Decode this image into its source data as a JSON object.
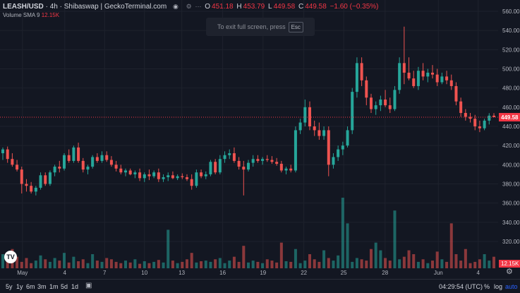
{
  "legend": {
    "symbol": "LEASH/USD",
    "separator1": "·",
    "interval": "4h",
    "separator2": "·",
    "exchange": "Shibaswap",
    "separator3": "|",
    "source": "GeckoTerminal.com",
    "o_label": "O",
    "o_value": "451.18",
    "h_label": "H",
    "h_value": "453.79",
    "l_label": "L",
    "l_value": "449.58",
    "c_label": "C",
    "c_value": "449.58",
    "change": "−1.60 (−0.35%)"
  },
  "volume_legend": {
    "label": "Volume",
    "indicator": "SMA 9",
    "value": "12.15K"
  },
  "fullscreen_hint": {
    "text": "To exit full screen, press",
    "key": "Esc"
  },
  "price_axis": {
    "ticks": [
      "560.00",
      "540.00",
      "520.00",
      "500.00",
      "480.00",
      "460.00",
      "440.00",
      "420.00",
      "400.00",
      "380.00",
      "360.00",
      "340.00",
      "320.00"
    ],
    "last_price_label": "449.58",
    "volume_label": "12.15K"
  },
  "time_axis": {
    "ticks": [
      "May",
      "4",
      "7",
      "10",
      "13",
      "16",
      "19",
      "22",
      "25",
      "28",
      "Jun",
      "4"
    ]
  },
  "bottom_bar": {
    "timeframes": [
      "5y",
      "1y",
      "6m",
      "3m",
      "1m",
      "5d",
      "1d"
    ],
    "clock": "04:29:54 (UTC)",
    "percent": "%",
    "log": "log",
    "auto": "auto"
  },
  "colors": {
    "up": "#26a69a",
    "down": "#ef5350",
    "background": "#131722",
    "grid": "#1e222d",
    "last_price": "#f23645"
  },
  "chart_data": {
    "type": "candlestick",
    "title": "LEASH/USD · 4h · Shibaswap",
    "ylim": [
      310,
      565
    ],
    "y_ticks": [
      320,
      340,
      360,
      380,
      400,
      420,
      440,
      460,
      480,
      500,
      520,
      540,
      560
    ],
    "x_ticks": [
      "May",
      "4",
      "7",
      "10",
      "13",
      "16",
      "19",
      "22",
      "25",
      "28",
      "Jun",
      "4"
    ],
    "last_price": 449.58,
    "candles": [
      {
        "o": 412,
        "h": 418,
        "l": 405,
        "c": 416
      },
      {
        "o": 416,
        "h": 419,
        "l": 402,
        "c": 406
      },
      {
        "o": 406,
        "h": 412,
        "l": 398,
        "c": 400
      },
      {
        "o": 400,
        "h": 405,
        "l": 393,
        "c": 395
      },
      {
        "o": 395,
        "h": 398,
        "l": 370,
        "c": 380
      },
      {
        "o": 380,
        "h": 385,
        "l": 372,
        "c": 378
      },
      {
        "o": 378,
        "h": 382,
        "l": 370,
        "c": 372
      },
      {
        "o": 372,
        "h": 378,
        "l": 368,
        "c": 376
      },
      {
        "o": 376,
        "h": 392,
        "l": 374,
        "c": 389
      },
      {
        "o": 389,
        "h": 392,
        "l": 378,
        "c": 380
      },
      {
        "o": 380,
        "h": 394,
        "l": 378,
        "c": 392
      },
      {
        "o": 392,
        "h": 400,
        "l": 388,
        "c": 398
      },
      {
        "o": 398,
        "h": 404,
        "l": 392,
        "c": 396
      },
      {
        "o": 396,
        "h": 412,
        "l": 394,
        "c": 410
      },
      {
        "o": 410,
        "h": 416,
        "l": 402,
        "c": 404
      },
      {
        "o": 404,
        "h": 420,
        "l": 402,
        "c": 418
      },
      {
        "o": 418,
        "h": 423,
        "l": 402,
        "c": 404
      },
      {
        "o": 404,
        "h": 407,
        "l": 392,
        "c": 395
      },
      {
        "o": 395,
        "h": 400,
        "l": 390,
        "c": 398
      },
      {
        "o": 398,
        "h": 410,
        "l": 396,
        "c": 408
      },
      {
        "o": 408,
        "h": 412,
        "l": 402,
        "c": 404
      },
      {
        "o": 404,
        "h": 414,
        "l": 402,
        "c": 410
      },
      {
        "o": 410,
        "h": 414,
        "l": 403,
        "c": 405
      },
      {
        "o": 405,
        "h": 409,
        "l": 398,
        "c": 400
      },
      {
        "o": 400,
        "h": 404,
        "l": 393,
        "c": 396
      },
      {
        "o": 396,
        "h": 400,
        "l": 390,
        "c": 392
      },
      {
        "o": 392,
        "h": 396,
        "l": 388,
        "c": 394
      },
      {
        "o": 394,
        "h": 396,
        "l": 389,
        "c": 390
      },
      {
        "o": 390,
        "h": 394,
        "l": 386,
        "c": 392
      },
      {
        "o": 392,
        "h": 396,
        "l": 383,
        "c": 386
      },
      {
        "o": 386,
        "h": 392,
        "l": 382,
        "c": 390
      },
      {
        "o": 390,
        "h": 395,
        "l": 384,
        "c": 388
      },
      {
        "o": 388,
        "h": 394,
        "l": 386,
        "c": 392
      },
      {
        "o": 392,
        "h": 396,
        "l": 382,
        "c": 385
      },
      {
        "o": 385,
        "h": 390,
        "l": 382,
        "c": 387
      },
      {
        "o": 387,
        "h": 392,
        "l": 383,
        "c": 389
      },
      {
        "o": 389,
        "h": 393,
        "l": 385,
        "c": 386
      },
      {
        "o": 386,
        "h": 390,
        "l": 384,
        "c": 388
      },
      {
        "o": 388,
        "h": 391,
        "l": 385,
        "c": 387
      },
      {
        "o": 387,
        "h": 390,
        "l": 383,
        "c": 385
      },
      {
        "o": 385,
        "h": 390,
        "l": 374,
        "c": 378
      },
      {
        "o": 378,
        "h": 395,
        "l": 376,
        "c": 392
      },
      {
        "o": 392,
        "h": 395,
        "l": 386,
        "c": 388
      },
      {
        "o": 388,
        "h": 393,
        "l": 385,
        "c": 390
      },
      {
        "o": 390,
        "h": 405,
        "l": 388,
        "c": 403
      },
      {
        "o": 403,
        "h": 406,
        "l": 390,
        "c": 392
      },
      {
        "o": 392,
        "h": 410,
        "l": 390,
        "c": 406
      },
      {
        "o": 406,
        "h": 414,
        "l": 402,
        "c": 410
      },
      {
        "o": 410,
        "h": 416,
        "l": 406,
        "c": 412
      },
      {
        "o": 412,
        "h": 418,
        "l": 402,
        "c": 404
      },
      {
        "o": 404,
        "h": 408,
        "l": 395,
        "c": 398
      },
      {
        "o": 398,
        "h": 404,
        "l": 368,
        "c": 395
      },
      {
        "o": 395,
        "h": 405,
        "l": 393,
        "c": 402
      },
      {
        "o": 402,
        "h": 410,
        "l": 398,
        "c": 406
      },
      {
        "o": 406,
        "h": 410,
        "l": 402,
        "c": 404
      },
      {
        "o": 404,
        "h": 408,
        "l": 400,
        "c": 406
      },
      {
        "o": 406,
        "h": 410,
        "l": 403,
        "c": 405
      },
      {
        "o": 405,
        "h": 409,
        "l": 401,
        "c": 403
      },
      {
        "o": 403,
        "h": 407,
        "l": 399,
        "c": 401
      },
      {
        "o": 401,
        "h": 404,
        "l": 392,
        "c": 394
      },
      {
        "o": 394,
        "h": 398,
        "l": 390,
        "c": 396
      },
      {
        "o": 396,
        "h": 400,
        "l": 392,
        "c": 394
      },
      {
        "o": 394,
        "h": 440,
        "l": 392,
        "c": 436
      },
      {
        "o": 436,
        "h": 448,
        "l": 432,
        "c": 444
      },
      {
        "o": 444,
        "h": 468,
        "l": 440,
        "c": 460
      },
      {
        "o": 460,
        "h": 466,
        "l": 436,
        "c": 440
      },
      {
        "o": 440,
        "h": 446,
        "l": 430,
        "c": 436
      },
      {
        "o": 436,
        "h": 444,
        "l": 426,
        "c": 430
      },
      {
        "o": 430,
        "h": 440,
        "l": 426,
        "c": 436
      },
      {
        "o": 436,
        "h": 440,
        "l": 388,
        "c": 400
      },
      {
        "o": 400,
        "h": 412,
        "l": 396,
        "c": 408
      },
      {
        "o": 408,
        "h": 420,
        "l": 404,
        "c": 416
      },
      {
        "o": 416,
        "h": 424,
        "l": 410,
        "c": 420
      },
      {
        "o": 420,
        "h": 440,
        "l": 418,
        "c": 436
      },
      {
        "o": 436,
        "h": 480,
        "l": 432,
        "c": 476
      },
      {
        "o": 476,
        "h": 512,
        "l": 470,
        "c": 506
      },
      {
        "o": 506,
        "h": 512,
        "l": 482,
        "c": 488
      },
      {
        "o": 488,
        "h": 492,
        "l": 462,
        "c": 470
      },
      {
        "o": 470,
        "h": 474,
        "l": 454,
        "c": 458
      },
      {
        "o": 458,
        "h": 466,
        "l": 452,
        "c": 462
      },
      {
        "o": 462,
        "h": 472,
        "l": 456,
        "c": 468
      },
      {
        "o": 468,
        "h": 478,
        "l": 460,
        "c": 462
      },
      {
        "o": 462,
        "h": 470,
        "l": 454,
        "c": 458
      },
      {
        "o": 458,
        "h": 482,
        "l": 456,
        "c": 478
      },
      {
        "o": 478,
        "h": 512,
        "l": 474,
        "c": 506
      },
      {
        "o": 506,
        "h": 544,
        "l": 484,
        "c": 496
      },
      {
        "o": 496,
        "h": 512,
        "l": 488,
        "c": 490
      },
      {
        "o": 490,
        "h": 498,
        "l": 480,
        "c": 482
      },
      {
        "o": 482,
        "h": 502,
        "l": 478,
        "c": 498
      },
      {
        "o": 498,
        "h": 506,
        "l": 488,
        "c": 492
      },
      {
        "o": 492,
        "h": 500,
        "l": 486,
        "c": 496
      },
      {
        "o": 496,
        "h": 504,
        "l": 490,
        "c": 494
      },
      {
        "o": 494,
        "h": 500,
        "l": 482,
        "c": 486
      },
      {
        "o": 486,
        "h": 496,
        "l": 484,
        "c": 492
      },
      {
        "o": 492,
        "h": 498,
        "l": 484,
        "c": 488
      },
      {
        "o": 488,
        "h": 494,
        "l": 478,
        "c": 482
      },
      {
        "o": 482,
        "h": 486,
        "l": 462,
        "c": 466
      },
      {
        "o": 466,
        "h": 470,
        "l": 450,
        "c": 454
      },
      {
        "o": 454,
        "h": 458,
        "l": 446,
        "c": 450
      },
      {
        "o": 450,
        "h": 454,
        "l": 444,
        "c": 448
      },
      {
        "o": 448,
        "h": 452,
        "l": 436,
        "c": 440
      },
      {
        "o": 440,
        "h": 446,
        "l": 434,
        "c": 438
      },
      {
        "o": 438,
        "h": 448,
        "l": 436,
        "c": 446
      },
      {
        "o": 446,
        "h": 453.79,
        "l": 442,
        "c": 451.18
      },
      {
        "o": 451.18,
        "h": 453.79,
        "l": 449.58,
        "c": 449.58
      }
    ],
    "volumes": [
      22,
      14,
      30,
      18,
      10,
      16,
      8,
      12,
      20,
      14,
      10,
      16,
      12,
      24,
      9,
      18,
      11,
      14,
      8,
      22,
      12,
      10,
      16,
      14,
      10,
      8,
      12,
      9,
      14,
      7,
      11,
      8,
      10,
      13,
      9,
      60,
      12,
      8,
      10,
      14,
      24,
      9,
      11,
      12,
      10,
      14,
      16,
      8,
      12,
      18,
      10,
      35,
      9,
      12,
      10,
      8,
      14,
      12,
      9,
      40,
      11,
      10,
      30,
      8,
      12,
      22,
      14,
      10,
      28,
      16,
      12,
      20,
      110,
      70,
      10,
      16,
      14,
      12,
      30,
      40,
      28,
      16,
      12,
      90,
      14,
      18,
      28,
      22,
      10,
      14,
      8,
      12,
      26,
      14,
      10,
      70,
      22,
      12,
      30,
      8,
      10,
      14,
      22,
      12,
      18
    ]
  }
}
